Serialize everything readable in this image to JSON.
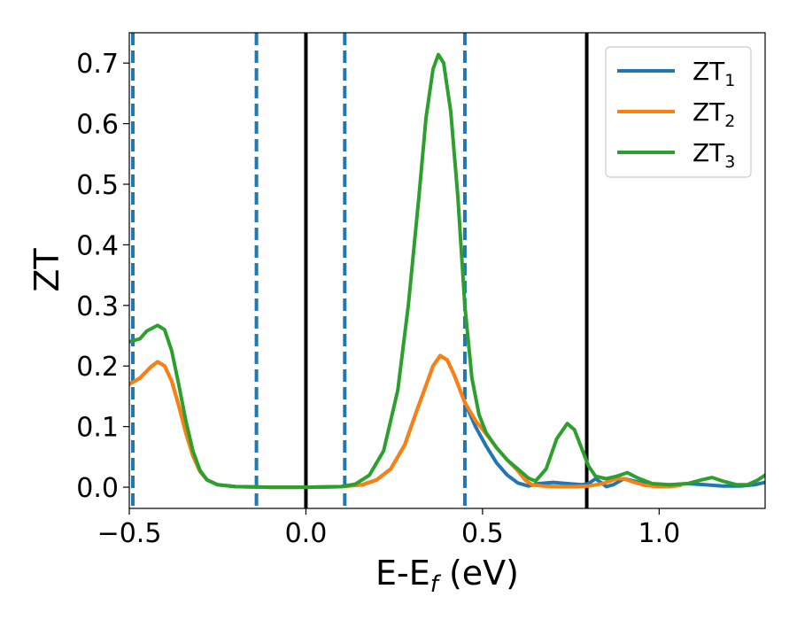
{
  "chart_data": {
    "type": "line",
    "title": "",
    "xlabel": "E-E",
    "xlabel_sub": "f",
    "xlabel_unit": " (eV)",
    "ylabel": "ZT",
    "xlim": [
      -0.5,
      1.3
    ],
    "ylim": [
      -0.035,
      0.75
    ],
    "xticks": [
      -0.5,
      0.0,
      0.5,
      1.0
    ],
    "xtick_labels": [
      "−0.5",
      "0.0",
      "0.5",
      "1.0"
    ],
    "yticks": [
      0.0,
      0.1,
      0.2,
      0.3,
      0.4,
      0.5,
      0.6,
      0.7
    ],
    "ytick_labels": [
      "0.0",
      "0.1",
      "0.2",
      "0.3",
      "0.4",
      "0.5",
      "0.6",
      "0.7"
    ],
    "grid": false,
    "legend_position": "top-right",
    "vlines": [
      {
        "x": -0.49,
        "style": "dashed",
        "color": "#1f77b4"
      },
      {
        "x": -0.14,
        "style": "dashed",
        "color": "#1f77b4"
      },
      {
        "x": 0.11,
        "style": "dashed",
        "color": "#1f77b4"
      },
      {
        "x": 0.45,
        "style": "dashed",
        "color": "#1f77b4"
      },
      {
        "x": 0.0,
        "style": "solid",
        "color": "#000000"
      },
      {
        "x": 0.795,
        "style": "solid",
        "color": "#000000"
      }
    ],
    "series": [
      {
        "name": "ZT",
        "sub": "1",
        "color": "#1f77b4",
        "points": [
          [
            -0.5,
            0.17
          ],
          [
            -0.47,
            0.18
          ],
          [
            -0.44,
            0.198
          ],
          [
            -0.42,
            0.207
          ],
          [
            -0.4,
            0.2
          ],
          [
            -0.38,
            0.175
          ],
          [
            -0.36,
            0.135
          ],
          [
            -0.34,
            0.09
          ],
          [
            -0.32,
            0.052
          ],
          [
            -0.3,
            0.026
          ],
          [
            -0.28,
            0.012
          ],
          [
            -0.25,
            0.004
          ],
          [
            -0.2,
            0.001
          ],
          [
            -0.1,
            0.0
          ],
          [
            0.0,
            0.0
          ],
          [
            0.1,
            0.001
          ],
          [
            0.16,
            0.004
          ],
          [
            0.2,
            0.012
          ],
          [
            0.24,
            0.03
          ],
          [
            0.28,
            0.07
          ],
          [
            0.31,
            0.12
          ],
          [
            0.34,
            0.168
          ],
          [
            0.36,
            0.2
          ],
          [
            0.38,
            0.217
          ],
          [
            0.4,
            0.21
          ],
          [
            0.42,
            0.185
          ],
          [
            0.45,
            0.14
          ],
          [
            0.48,
            0.1
          ],
          [
            0.51,
            0.068
          ],
          [
            0.54,
            0.04
          ],
          [
            0.57,
            0.02
          ],
          [
            0.6,
            0.007
          ],
          [
            0.63,
            0.002
          ],
          [
            0.66,
            0.006
          ],
          [
            0.7,
            0.008
          ],
          [
            0.74,
            0.006
          ],
          [
            0.78,
            0.004
          ],
          [
            0.8,
            0.006
          ],
          [
            0.82,
            0.014
          ],
          [
            0.84,
            0.006
          ],
          [
            0.85,
            0.001
          ],
          [
            0.87,
            0.004
          ],
          [
            0.9,
            0.014
          ],
          [
            0.93,
            0.01
          ],
          [
            0.97,
            0.004
          ],
          [
            1.02,
            0.003
          ],
          [
            1.08,
            0.006
          ],
          [
            1.13,
            0.004
          ],
          [
            1.18,
            0.002
          ],
          [
            1.23,
            0.002
          ],
          [
            1.27,
            0.004
          ],
          [
            1.3,
            0.008
          ]
        ]
      },
      {
        "name": "ZT",
        "sub": "2",
        "color": "#ff7f0e",
        "points": [
          [
            -0.5,
            0.17
          ],
          [
            -0.47,
            0.18
          ],
          [
            -0.44,
            0.198
          ],
          [
            -0.42,
            0.207
          ],
          [
            -0.4,
            0.2
          ],
          [
            -0.38,
            0.175
          ],
          [
            -0.36,
            0.135
          ],
          [
            -0.34,
            0.09
          ],
          [
            -0.32,
            0.052
          ],
          [
            -0.3,
            0.026
          ],
          [
            -0.28,
            0.012
          ],
          [
            -0.25,
            0.004
          ],
          [
            -0.2,
            0.001
          ],
          [
            -0.1,
            0.0
          ],
          [
            0.0,
            0.0
          ],
          [
            0.1,
            0.001
          ],
          [
            0.16,
            0.004
          ],
          [
            0.2,
            0.012
          ],
          [
            0.24,
            0.03
          ],
          [
            0.28,
            0.07
          ],
          [
            0.31,
            0.12
          ],
          [
            0.34,
            0.168
          ],
          [
            0.36,
            0.2
          ],
          [
            0.38,
            0.217
          ],
          [
            0.4,
            0.21
          ],
          [
            0.42,
            0.185
          ],
          [
            0.45,
            0.14
          ],
          [
            0.48,
            0.11
          ],
          [
            0.51,
            0.088
          ],
          [
            0.54,
            0.065
          ],
          [
            0.57,
            0.045
          ],
          [
            0.6,
            0.027
          ],
          [
            0.62,
            0.012
          ],
          [
            0.64,
            0.004
          ],
          [
            0.67,
            0.002
          ],
          [
            0.72,
            0.001
          ],
          [
            0.76,
            0.001
          ],
          [
            0.8,
            0.002
          ],
          [
            0.84,
            0.006
          ],
          [
            0.88,
            0.014
          ],
          [
            0.9,
            0.014
          ],
          [
            0.93,
            0.008
          ],
          [
            0.96,
            0.003
          ],
          [
            1.0,
            0.001
          ],
          [
            1.03,
            0.001
          ],
          [
            1.06,
            0.003
          ]
        ]
      },
      {
        "name": "ZT",
        "sub": "3",
        "color": "#2ca02c",
        "points": [
          [
            -0.5,
            0.24
          ],
          [
            -0.47,
            0.245
          ],
          [
            -0.45,
            0.258
          ],
          [
            -0.42,
            0.267
          ],
          [
            -0.4,
            0.26
          ],
          [
            -0.38,
            0.225
          ],
          [
            -0.36,
            0.17
          ],
          [
            -0.34,
            0.11
          ],
          [
            -0.32,
            0.06
          ],
          [
            -0.3,
            0.028
          ],
          [
            -0.28,
            0.012
          ],
          [
            -0.25,
            0.004
          ],
          [
            -0.2,
            0.001
          ],
          [
            -0.1,
            0.0
          ],
          [
            0.0,
            0.0
          ],
          [
            0.1,
            0.001
          ],
          [
            0.14,
            0.005
          ],
          [
            0.18,
            0.02
          ],
          [
            0.22,
            0.06
          ],
          [
            0.26,
            0.16
          ],
          [
            0.29,
            0.3
          ],
          [
            0.32,
            0.48
          ],
          [
            0.34,
            0.61
          ],
          [
            0.36,
            0.69
          ],
          [
            0.375,
            0.714
          ],
          [
            0.39,
            0.7
          ],
          [
            0.41,
            0.62
          ],
          [
            0.43,
            0.48
          ],
          [
            0.45,
            0.3
          ],
          [
            0.47,
            0.18
          ],
          [
            0.49,
            0.12
          ],
          [
            0.51,
            0.09
          ],
          [
            0.54,
            0.065
          ],
          [
            0.57,
            0.045
          ],
          [
            0.6,
            0.03
          ],
          [
            0.63,
            0.015
          ],
          [
            0.65,
            0.01
          ],
          [
            0.68,
            0.03
          ],
          [
            0.71,
            0.08
          ],
          [
            0.74,
            0.105
          ],
          [
            0.76,
            0.095
          ],
          [
            0.78,
            0.065
          ],
          [
            0.8,
            0.035
          ],
          [
            0.82,
            0.018
          ],
          [
            0.85,
            0.014
          ],
          [
            0.88,
            0.018
          ],
          [
            0.91,
            0.024
          ],
          [
            0.94,
            0.015
          ],
          [
            0.98,
            0.006
          ],
          [
            1.03,
            0.004
          ],
          [
            1.08,
            0.006
          ],
          [
            1.12,
            0.012
          ],
          [
            1.15,
            0.016
          ],
          [
            1.18,
            0.01
          ],
          [
            1.22,
            0.004
          ],
          [
            1.25,
            0.004
          ],
          [
            1.28,
            0.012
          ],
          [
            1.3,
            0.02
          ]
        ]
      }
    ]
  }
}
